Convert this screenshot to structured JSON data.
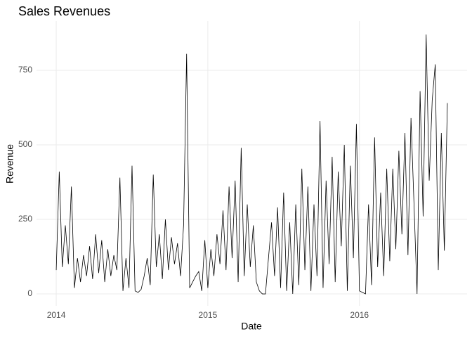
{
  "chart_data": {
    "type": "line",
    "title": "Sales Revenues",
    "x_label": "Date",
    "y_label": "Revenue",
    "x": [
      2014.0,
      2014.02,
      2014.04,
      2014.06,
      2014.08,
      2014.1,
      2014.12,
      2014.14,
      2014.16,
      2014.18,
      2014.2,
      2014.22,
      2014.24,
      2014.26,
      2014.28,
      2014.3,
      2014.32,
      2014.34,
      2014.36,
      2014.38,
      2014.4,
      2014.42,
      2014.44,
      2014.46,
      2014.48,
      2014.5,
      2014.52,
      2014.54,
      2014.56,
      2014.58,
      2014.6,
      2014.62,
      2014.64,
      2014.66,
      2014.68,
      2014.7,
      2014.72,
      2014.74,
      2014.76,
      2014.78,
      2014.8,
      2014.82,
      2014.84,
      2014.86,
      2014.88,
      2014.9,
      2014.92,
      2014.94,
      2014.96,
      2014.98,
      2015.0,
      2015.02,
      2015.04,
      2015.06,
      2015.08,
      2015.1,
      2015.12,
      2015.14,
      2015.16,
      2015.18,
      2015.2,
      2015.22,
      2015.24,
      2015.26,
      2015.28,
      2015.3,
      2015.32,
      2015.34,
      2015.36,
      2015.38,
      2015.4,
      2015.42,
      2015.44,
      2015.46,
      2015.48,
      2015.5,
      2015.52,
      2015.54,
      2015.56,
      2015.58,
      2015.6,
      2015.62,
      2015.64,
      2015.66,
      2015.68,
      2015.7,
      2015.72,
      2015.74,
      2015.76,
      2015.78,
      2015.8,
      2015.82,
      2015.84,
      2015.86,
      2015.88,
      2015.9,
      2015.92,
      2015.94,
      2015.96,
      2015.98,
      2016.0,
      2016.02,
      2016.04,
      2016.06,
      2016.08,
      2016.1,
      2016.12,
      2016.14,
      2016.16,
      2016.18,
      2016.2,
      2016.22,
      2016.24,
      2016.26,
      2016.28,
      2016.3,
      2016.32,
      2016.34,
      2016.36,
      2016.38,
      2016.4,
      2016.42,
      2016.44,
      2016.46,
      2016.48,
      2016.5,
      2016.52,
      2016.54,
      2016.56,
      2016.58
    ],
    "series": [
      {
        "color": "#000000",
        "values": [
          80,
          410,
          90,
          230,
          100,
          360,
          20,
          120,
          40,
          130,
          60,
          160,
          50,
          200,
          70,
          180,
          40,
          150,
          60,
          130,
          80,
          390,
          10,
          120,
          20,
          430,
          10,
          5,
          15,
          60,
          120,
          30,
          400,
          90,
          200,
          50,
          250,
          80,
          190,
          100,
          170,
          60,
          230,
          805,
          20,
          40,
          60,
          75,
          10,
          180,
          20,
          150,
          60,
          200,
          100,
          280,
          80,
          360,
          120,
          380,
          40,
          490,
          60,
          300,
          90,
          230,
          40,
          10,
          0,
          0,
          120,
          240,
          60,
          290,
          20,
          340,
          10,
          240,
          0,
          300,
          30,
          420,
          80,
          360,
          10,
          300,
          60,
          580,
          20,
          380,
          100,
          460,
          40,
          410,
          160,
          500,
          10,
          430,
          120,
          570,
          10,
          5,
          0,
          300,
          30,
          525,
          90,
          340,
          60,
          420,
          110,
          420,
          150,
          480,
          200,
          540,
          130,
          590,
          300,
          0,
          680,
          260,
          870,
          380,
          650,
          770,
          80,
          540,
          145,
          640
        ]
      }
    ],
    "xlim": [
      2013.87,
      2016.71
    ],
    "ylim": [
      -40,
      915
    ],
    "xticks": [
      2014,
      2015,
      2016
    ],
    "yticks": [
      0,
      250,
      500,
      750
    ],
    "grid": true
  }
}
